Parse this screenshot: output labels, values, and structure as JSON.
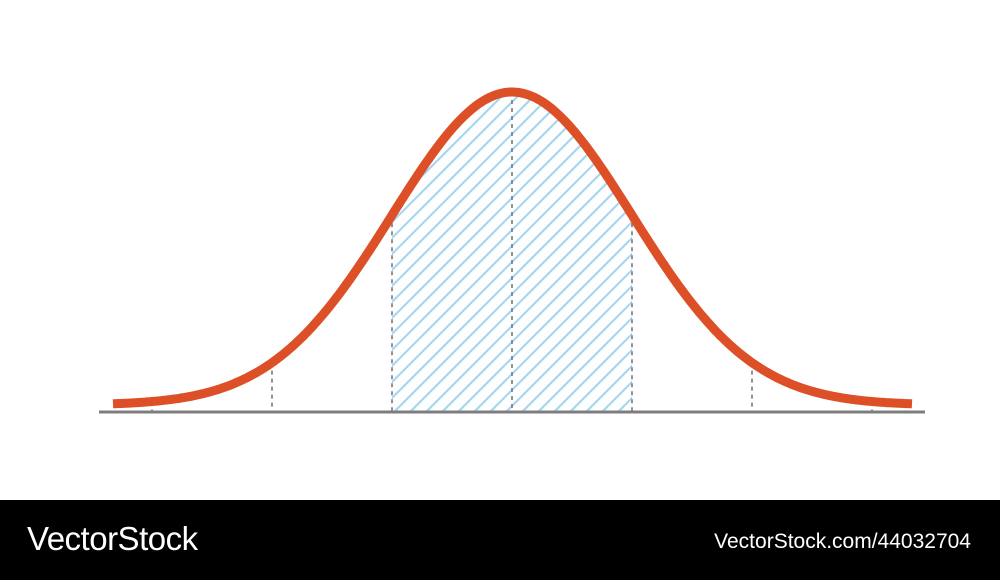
{
  "chart_data": {
    "type": "area",
    "distribution": "normal",
    "x_ticks": [
      -3,
      -2,
      -1,
      0,
      1,
      2,
      3
    ],
    "shaded_interval": [
      -1,
      1
    ],
    "show_tick_labels": false,
    "colors": {
      "curve": "#dd4f26",
      "shading": "#a6d7ef",
      "axis": "#7d7d7d",
      "guide_lines": "#777777"
    }
  },
  "footer": {
    "brand": "VectorStock",
    "image_id": "VectorStock.com/44032704"
  }
}
